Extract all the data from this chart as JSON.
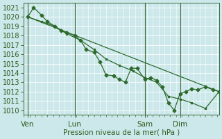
{
  "xlabel": "Pression niveau de la mer( hPa )",
  "bg_color": "#cce8ea",
  "grid_color": "#ffffff",
  "line_color": "#2d6a2d",
  "ylim": [
    1009.5,
    1021.5
  ],
  "yticks": [
    1010,
    1011,
    1012,
    1013,
    1014,
    1015,
    1016,
    1017,
    1018,
    1019,
    1020,
    1021
  ],
  "xlim": [
    0,
    100
  ],
  "day_positions": [
    2,
    26,
    62,
    80
  ],
  "day_labels": [
    "Ven",
    "Lun",
    "Sam",
    "Dim"
  ],
  "vline_positions": [
    2,
    26,
    62,
    80
  ],
  "line1_x": [
    2,
    5,
    9,
    12,
    16,
    19,
    22,
    26,
    29,
    32,
    36,
    39,
    42,
    46,
    49,
    52,
    55,
    58,
    62,
    65,
    68,
    71,
    74,
    77,
    80,
    83,
    86,
    89,
    93,
    97,
    100
  ],
  "line1_y": [
    1020.0,
    1021.0,
    1020.2,
    1019.5,
    1019.0,
    1018.5,
    1018.3,
    1018.0,
    1017.5,
    1016.5,
    1016.2,
    1015.2,
    1013.8,
    1013.7,
    1013.3,
    1013.0,
    1014.5,
    1014.5,
    1013.3,
    1013.5,
    1013.2,
    1012.5,
    1010.8,
    1010.0,
    1011.8,
    1012.0,
    1012.3,
    1012.2,
    1012.5,
    1012.2,
    1012.0
  ],
  "line2_x": [
    2,
    9,
    16,
    22,
    29,
    36,
    42,
    49,
    56,
    62,
    68,
    74,
    80,
    86,
    93,
    100
  ],
  "line2_y": [
    1020.0,
    1019.5,
    1019.0,
    1018.2,
    1017.5,
    1016.5,
    1015.5,
    1014.8,
    1014.2,
    1013.5,
    1013.0,
    1011.5,
    1011.2,
    1010.8,
    1010.2,
    1012.0
  ],
  "line3_x": [
    2,
    100
  ],
  "line3_y": [
    1020.0,
    1012.0
  ],
  "font_color": "#2d5a1b",
  "font_size": 7.5,
  "tick_fontsize": 7,
  "marker_size": 2.5,
  "linewidth": 0.9
}
